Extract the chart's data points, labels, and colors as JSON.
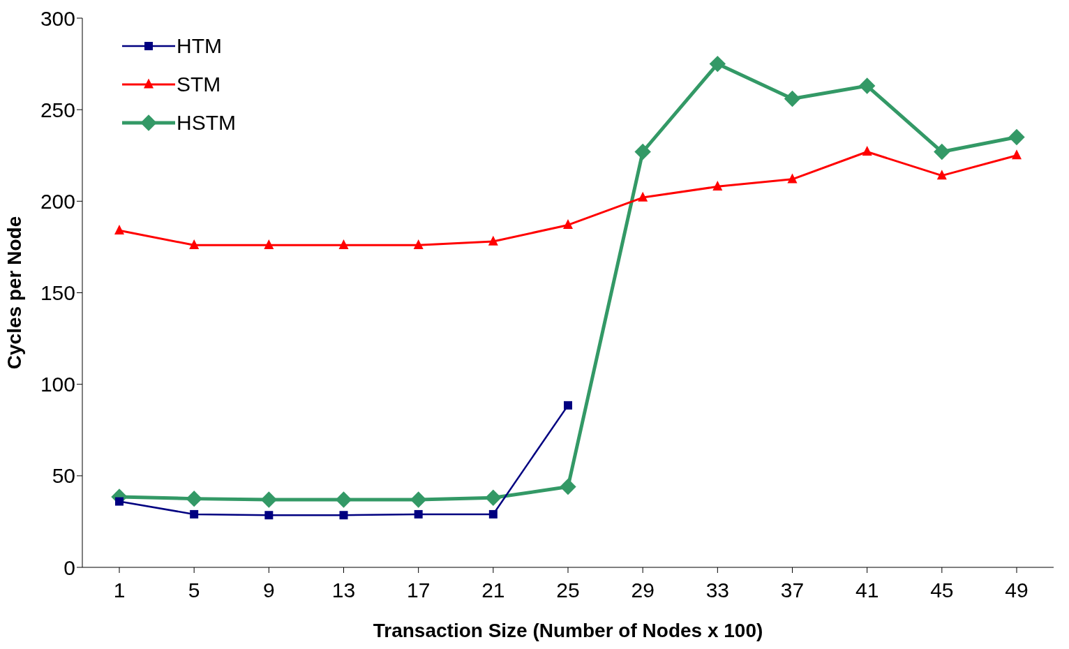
{
  "chart_data": {
    "type": "line",
    "xlabel": "Transaction Size (Number of Nodes x 100)",
    "ylabel": "Cycles per Node",
    "categories": [
      "1",
      "5",
      "9",
      "13",
      "17",
      "21",
      "25",
      "29",
      "33",
      "37",
      "41",
      "45",
      "49"
    ],
    "ylim": [
      0,
      300
    ],
    "yticks": [
      0,
      50,
      100,
      150,
      200,
      250,
      300
    ],
    "grid": false,
    "legend": "top left",
    "line_style": "solid",
    "series": [
      {
        "name": "HTM",
        "color": "#000080",
        "marker": "square",
        "values": [
          36,
          29,
          28.5,
          28.5,
          29,
          29,
          88.5,
          null,
          null,
          null,
          null,
          null,
          null
        ]
      },
      {
        "name": "STM",
        "color": "#ff0000",
        "marker": "triangle",
        "values": [
          184,
          176,
          176,
          176,
          176,
          178,
          187,
          202,
          208,
          212,
          227,
          214,
          225
        ]
      },
      {
        "name": "HSTM",
        "color": "#339966",
        "marker": "diamond",
        "values": [
          38.5,
          37.5,
          37,
          37,
          37,
          38,
          44,
          227,
          275,
          256,
          263,
          227,
          235
        ]
      }
    ]
  }
}
